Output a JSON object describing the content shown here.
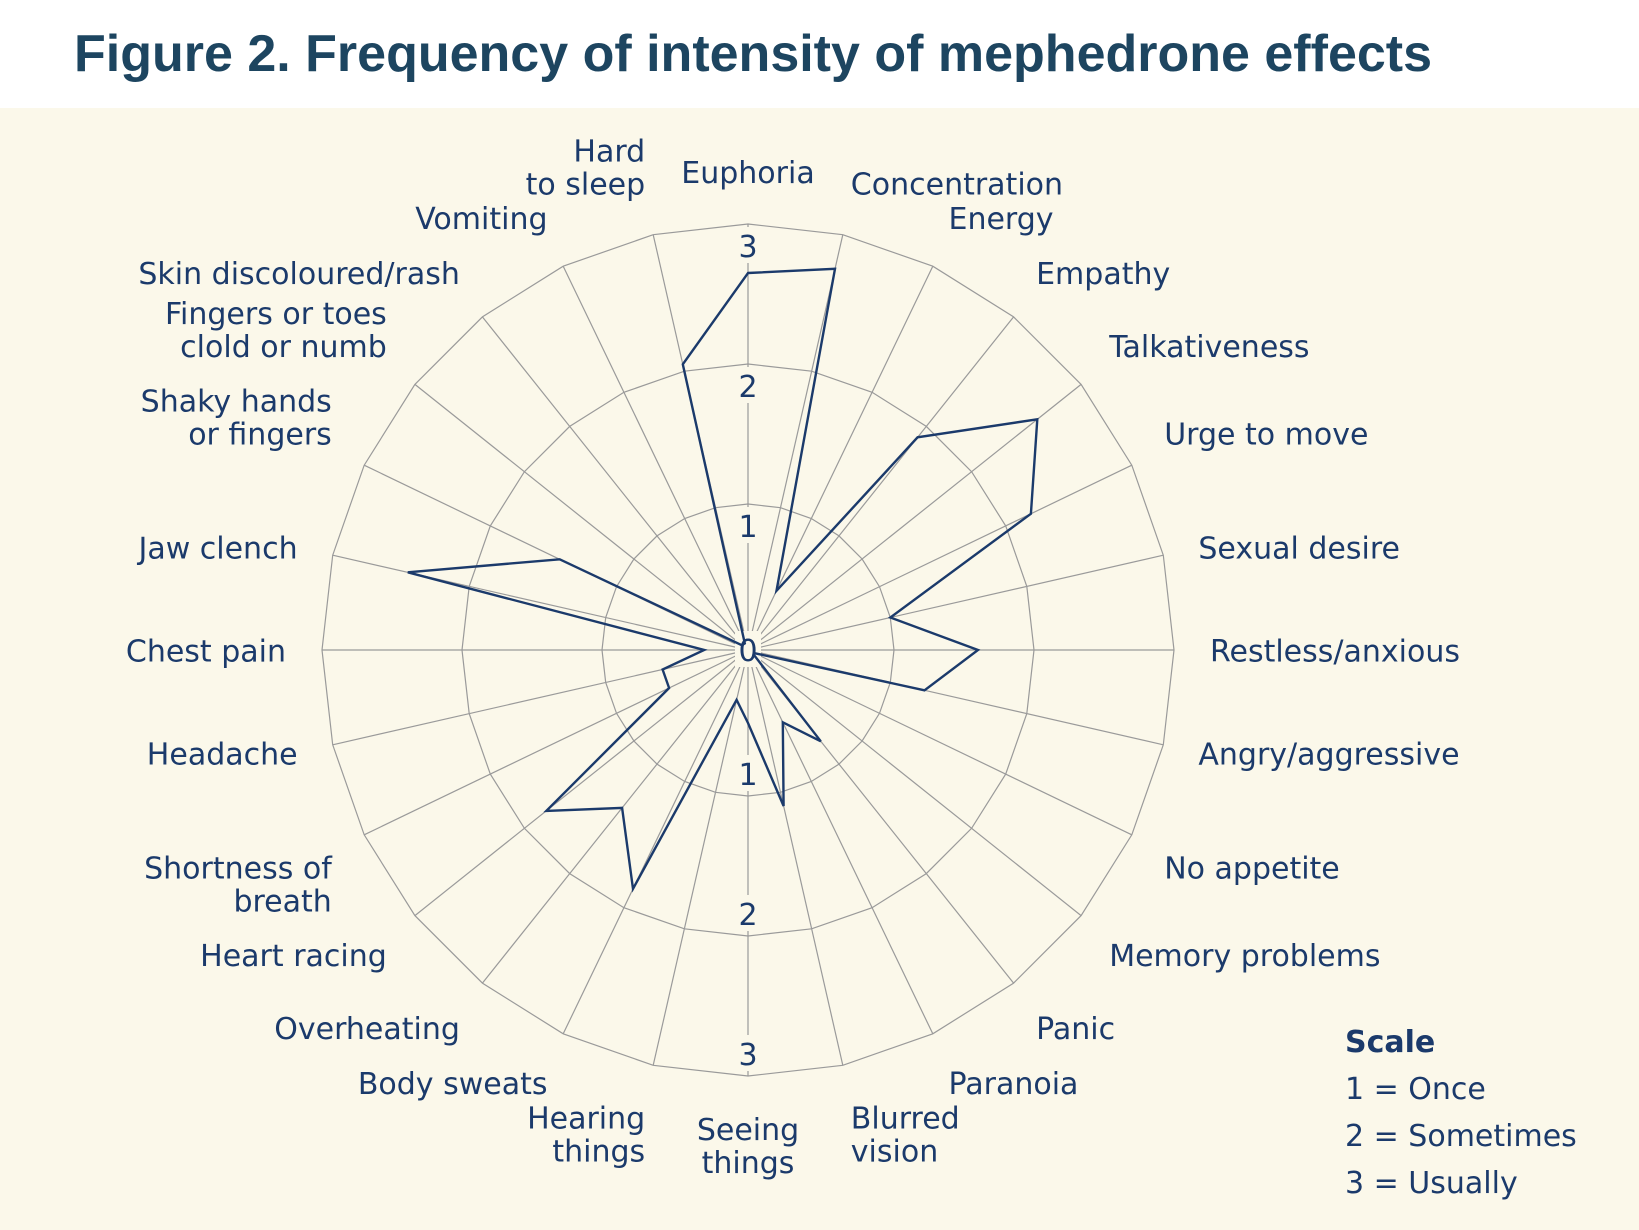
{
  "title": "Figure 2. Frequency of intensity of mephedrone effects",
  "legend": {
    "heading": "Scale",
    "items": [
      "1 = Once",
      "2 = Sometimes",
      "3 = Usually"
    ]
  },
  "colors": {
    "line": "#1b3a6b",
    "grid": "#9a9a9a",
    "panel": "#fbf8ea",
    "title": "#1d4560"
  },
  "chart_data": {
    "type": "radar",
    "title": "Figure 2. Frequency of intensity of mephedrone effects",
    "scale_range": [
      0,
      3
    ],
    "tick_labels_up": [
      "0",
      "1",
      "2",
      "3"
    ],
    "tick_labels_down": [
      "1",
      "2",
      "3"
    ],
    "grid": true,
    "legend_position": "bottom-right",
    "categories": [
      "Euphoria",
      "Concentration",
      "Energy",
      "Empathy",
      "Talkativeness",
      "Urge to move",
      "Sexual desire",
      "Restless/anxious",
      "Angry/aggressive",
      "No appetite",
      "Memory problems",
      "Panic",
      "Paranoia",
      "Blurred vision",
      "Seeing things",
      "Hearing things",
      "Body sweats",
      "Overheating",
      "Heart racing",
      "Shortness of breath",
      "Headache",
      "Chest pain",
      "Jaw clench",
      "Shaky hands or fingers",
      "Fingers or toes clold or numb",
      "Skin discoloured/rash",
      "Vomiting",
      "Hard to sleep"
    ],
    "category_lines": [
      [
        "Euphoria"
      ],
      [
        "Concentration"
      ],
      [
        "Energy"
      ],
      [
        "Empathy"
      ],
      [
        "Talkativeness"
      ],
      [
        "Urge to move"
      ],
      [
        "Sexual desire"
      ],
      [
        "Restless/anxious"
      ],
      [
        "Angry/aggressive"
      ],
      [
        "No appetite"
      ],
      [
        "Memory problems"
      ],
      [
        "Panic"
      ],
      [
        "Paranoia"
      ],
      [
        "Blurred",
        "vision"
      ],
      [
        "Seeing",
        "things"
      ],
      [
        "Hearing",
        "things"
      ],
      [
        "Body sweats"
      ],
      [
        "Overheating"
      ],
      [
        "Heart racing"
      ],
      [
        "Shortness of",
        "breath"
      ],
      [
        "Headache"
      ],
      [
        "Chest pain"
      ],
      [
        "Jaw clench"
      ],
      [
        "Shaky hands",
        "or fingers"
      ],
      [
        "Fingers or toes",
        "clold or numb"
      ],
      [
        "Skin discoloured/rash"
      ],
      [
        "Vomiting"
      ],
      [
        "Hard",
        "to sleep"
      ]
    ],
    "values": [
      2.65,
      2.75,
      0.45,
      1.9,
      2.6,
      2.2,
      1.0,
      1.6,
      1.25,
      0.05,
      0.05,
      0.8,
      0.55,
      1.1,
      0.5,
      0.35,
      1.85,
      1.4,
      1.8,
      0.6,
      0.6,
      0.3,
      2.45,
      1.45,
      0.05,
      0.05,
      0.05,
      2.05
    ]
  }
}
